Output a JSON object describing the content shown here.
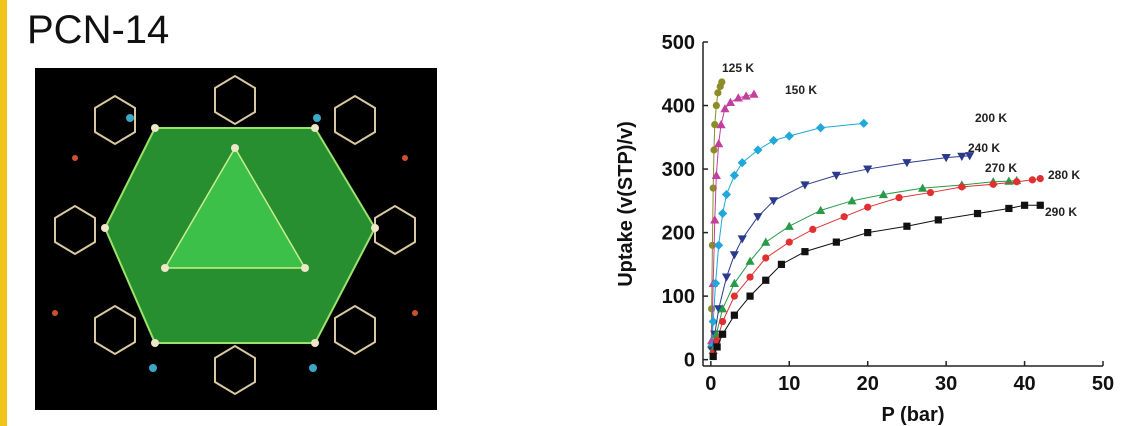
{
  "title": "PCN-14",
  "chart_data": {
    "type": "line",
    "x_label": "P (bar)",
    "y_label": "Uptake (v(STP)/v)",
    "xlim": [
      -1,
      50
    ],
    "ylim": [
      -10,
      500
    ],
    "xticks": [
      0,
      10,
      20,
      30,
      40,
      50
    ],
    "yticks": [
      0,
      100,
      200,
      300,
      400,
      500
    ],
    "series": [
      {
        "name": "125 K",
        "color": "#8c8c28",
        "marker": "circle",
        "x": [
          0.05,
          0.1,
          0.2,
          0.3,
          0.4,
          0.5,
          0.7,
          0.9,
          1.2,
          1.4
        ],
        "values": [
          20,
          80,
          180,
          270,
          330,
          370,
          400,
          420,
          430,
          437
        ]
      },
      {
        "name": "150 K",
        "color": "#c23fa0",
        "marker": "triangle",
        "x": [
          0.1,
          0.3,
          0.5,
          0.7,
          1,
          1.3,
          1.8,
          2.5,
          3.5,
          4.5,
          5.5
        ],
        "values": [
          30,
          120,
          220,
          290,
          340,
          370,
          395,
          405,
          412,
          415,
          418
        ]
      },
      {
        "name": "200 K",
        "color": "#1fa8d8",
        "marker": "diamond",
        "x": [
          0.1,
          0.3,
          0.6,
          1,
          1.5,
          2,
          3,
          4,
          6,
          8,
          10,
          14,
          19.5
        ],
        "values": [
          20,
          60,
          120,
          180,
          230,
          260,
          290,
          310,
          330,
          345,
          352,
          365,
          372
        ]
      },
      {
        "name": "240 K",
        "color": "#2b3a8c",
        "marker": "triangle-down",
        "x": [
          0.2,
          0.5,
          1,
          2,
          3,
          4,
          6,
          8,
          12,
          16,
          20,
          25,
          30,
          32,
          33
        ],
        "values": [
          15,
          40,
          80,
          130,
          165,
          190,
          225,
          250,
          275,
          290,
          300,
          310,
          318,
          320,
          321
        ]
      },
      {
        "name": "270 K",
        "color": "#2a9a4a",
        "marker": "triangle",
        "x": [
          0.3,
          0.7,
          1.5,
          3,
          5,
          7,
          10,
          14,
          18,
          22,
          27,
          32,
          36,
          38,
          39
        ],
        "values": [
          15,
          40,
          80,
          120,
          155,
          185,
          210,
          235,
          250,
          260,
          270,
          275,
          280,
          281,
          282
        ]
      },
      {
        "name": "280 K",
        "color": "#e03030",
        "marker": "circle",
        "x": [
          0.3,
          0.8,
          1.5,
          3,
          5,
          7,
          10,
          13,
          17,
          20,
          24,
          28,
          32,
          36,
          39,
          41,
          42
        ],
        "values": [
          10,
          30,
          60,
          100,
          130,
          160,
          185,
          205,
          225,
          240,
          255,
          263,
          272,
          276,
          280,
          283,
          285
        ]
      },
      {
        "name": "290 K",
        "color": "#111111",
        "marker": "square",
        "x": [
          0.3,
          0.8,
          1.5,
          3,
          5,
          7,
          9,
          12,
          16,
          20,
          25,
          29,
          34,
          38,
          40,
          42
        ],
        "values": [
          5,
          20,
          40,
          70,
          100,
          125,
          150,
          170,
          185,
          200,
          210,
          220,
          230,
          238,
          243,
          243
        ]
      }
    ]
  }
}
